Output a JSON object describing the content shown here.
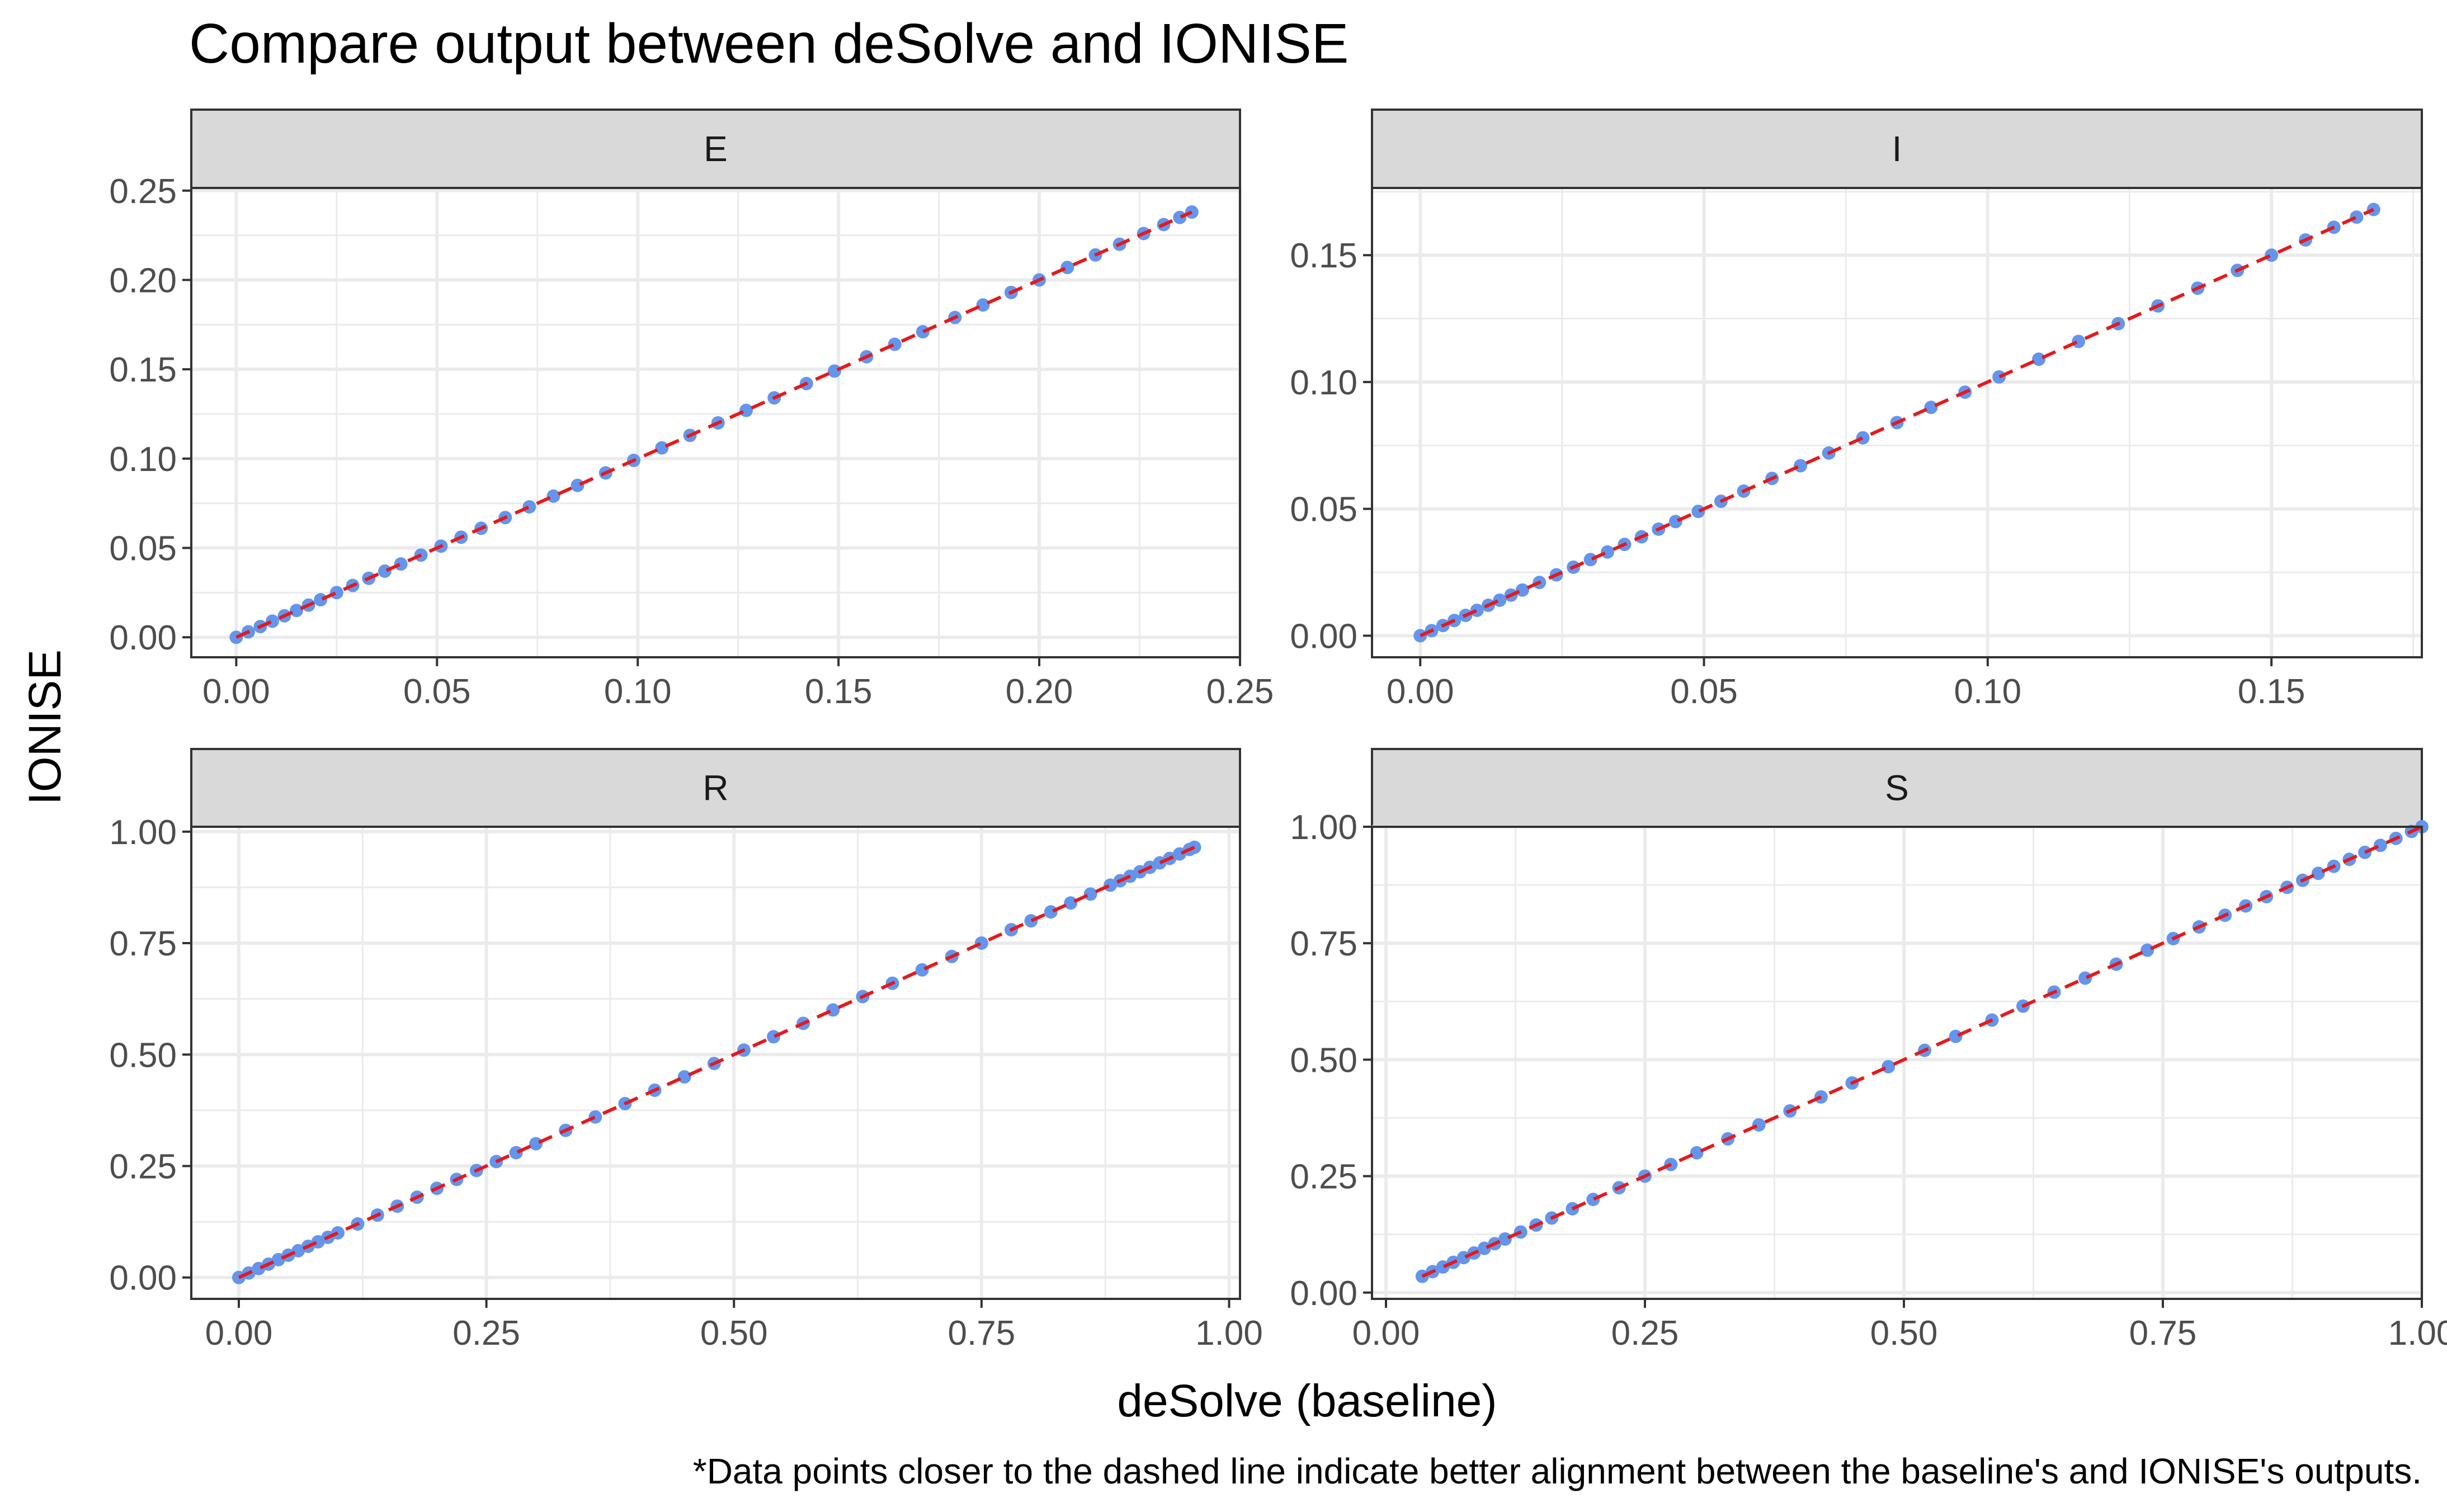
{
  "title": "Compare output between deSolve and IONISE",
  "xlabel": "deSolve (baseline)",
  "ylabel": "IONISE",
  "caption": "*Data points closer to the dashed line indicate better alignment between the baseline's and IONISE's outputs.",
  "colors": {
    "points": "#6495ED",
    "reference_line": "#E41A1C",
    "strip_background": "#D9D9D9",
    "grid": "#EBEBEB",
    "panel_border": "#333333",
    "text": "#000000",
    "tick_text": "#4D4D4D"
  },
  "chart_data": [
    {
      "type": "scatter",
      "panel": "E",
      "xlim": [
        -0.0112,
        0.25
      ],
      "ylim": [
        -0.0112,
        0.2515
      ],
      "xticks": [
        "0.00",
        "0.05",
        "0.10",
        "0.15",
        "0.20",
        "0.25"
      ],
      "yticks": [
        "0.00",
        "0.05",
        "0.10",
        "0.15",
        "0.20",
        "0.25"
      ],
      "x": [
        0,
        0.003,
        0.006,
        0.009,
        0.012,
        0.015,
        0.018,
        0.021,
        0.025,
        0.029,
        0.033,
        0.037,
        0.041,
        0.046,
        0.051,
        0.056,
        0.061,
        0.067,
        0.073,
        0.079,
        0.085,
        0.092,
        0.099,
        0.106,
        0.113,
        0.12,
        0.127,
        0.134,
        0.142,
        0.149,
        0.157,
        0.164,
        0.171,
        0.179,
        0.186,
        0.193,
        0.2,
        0.207,
        0.214,
        0.22,
        0.226,
        0.231,
        0.235,
        0.238
      ],
      "y": [
        0,
        0.003,
        0.006,
        0.009,
        0.012,
        0.015,
        0.018,
        0.021,
        0.025,
        0.029,
        0.033,
        0.037,
        0.041,
        0.046,
        0.051,
        0.056,
        0.061,
        0.067,
        0.073,
        0.079,
        0.085,
        0.092,
        0.099,
        0.106,
        0.113,
        0.12,
        0.127,
        0.134,
        0.142,
        0.149,
        0.157,
        0.164,
        0.171,
        0.179,
        0.186,
        0.193,
        0.2,
        0.207,
        0.214,
        0.22,
        0.226,
        0.231,
        0.235,
        0.238
      ],
      "reference_line": "y = x (dashed)"
    },
    {
      "type": "scatter",
      "panel": "I",
      "xlim": [
        -0.0085,
        0.1765
      ],
      "ylim": [
        -0.0085,
        0.1765
      ],
      "xticks": [
        "0.00",
        "0.05",
        "0.10",
        "0.15"
      ],
      "yticks": [
        "0.00",
        "0.05",
        "0.10",
        "0.15"
      ],
      "x": [
        0,
        0.002,
        0.004,
        0.006,
        0.008,
        0.01,
        0.012,
        0.014,
        0.016,
        0.018,
        0.021,
        0.024,
        0.027,
        0.03,
        0.033,
        0.036,
        0.039,
        0.042,
        0.045,
        0.049,
        0.053,
        0.057,
        0.062,
        0.067,
        0.072,
        0.078,
        0.084,
        0.09,
        0.096,
        0.102,
        0.109,
        0.116,
        0.123,
        0.13,
        0.137,
        0.144,
        0.15,
        0.156,
        0.161,
        0.165,
        0.168
      ],
      "y": [
        0,
        0.002,
        0.004,
        0.006,
        0.008,
        0.01,
        0.012,
        0.014,
        0.016,
        0.018,
        0.021,
        0.024,
        0.027,
        0.03,
        0.033,
        0.036,
        0.039,
        0.042,
        0.045,
        0.049,
        0.053,
        0.057,
        0.062,
        0.067,
        0.072,
        0.078,
        0.084,
        0.09,
        0.096,
        0.102,
        0.109,
        0.116,
        0.123,
        0.13,
        0.137,
        0.144,
        0.15,
        0.156,
        0.161,
        0.165,
        0.168
      ],
      "reference_line": "y = x (dashed)"
    },
    {
      "type": "scatter",
      "panel": "R",
      "xlim": [
        -0.048,
        1.011
      ],
      "ylim": [
        -0.048,
        1.011
      ],
      "xticks": [
        "0.00",
        "0.25",
        "0.50",
        "0.75",
        "1.00"
      ],
      "yticks": [
        "0.00",
        "0.25",
        "0.50",
        "0.75",
        "1.00"
      ],
      "x": [
        0,
        0.01,
        0.02,
        0.03,
        0.04,
        0.05,
        0.06,
        0.07,
        0.08,
        0.09,
        0.1,
        0.12,
        0.14,
        0.16,
        0.18,
        0.2,
        0.22,
        0.24,
        0.26,
        0.28,
        0.3,
        0.33,
        0.36,
        0.39,
        0.42,
        0.45,
        0.48,
        0.51,
        0.54,
        0.57,
        0.6,
        0.63,
        0.66,
        0.69,
        0.72,
        0.75,
        0.78,
        0.8,
        0.82,
        0.84,
        0.86,
        0.88,
        0.89,
        0.9,
        0.91,
        0.92,
        0.93,
        0.94,
        0.95,
        0.96,
        0.965
      ],
      "y": [
        0,
        0.01,
        0.02,
        0.03,
        0.04,
        0.05,
        0.06,
        0.07,
        0.08,
        0.09,
        0.1,
        0.12,
        0.14,
        0.16,
        0.18,
        0.2,
        0.22,
        0.24,
        0.26,
        0.28,
        0.3,
        0.33,
        0.36,
        0.39,
        0.42,
        0.45,
        0.48,
        0.51,
        0.54,
        0.57,
        0.6,
        0.63,
        0.66,
        0.69,
        0.72,
        0.75,
        0.78,
        0.8,
        0.82,
        0.84,
        0.86,
        0.88,
        0.89,
        0.9,
        0.91,
        0.92,
        0.93,
        0.94,
        0.95,
        0.96,
        0.965
      ],
      "reference_line": "y = x (dashed)"
    },
    {
      "type": "scatter",
      "panel": "S",
      "xlim": [
        -0.0135,
        1.0
      ],
      "ylim": [
        -0.0135,
        1.0
      ],
      "xticks": [
        "0.00",
        "0.25",
        "0.50",
        "0.75",
        "1.00"
      ],
      "yticks": [
        "0.00",
        "0.25",
        "0.50",
        "0.75",
        "1.00"
      ],
      "x": [
        0.035,
        0.045,
        0.055,
        0.065,
        0.075,
        0.085,
        0.095,
        0.105,
        0.115,
        0.13,
        0.145,
        0.16,
        0.18,
        0.2,
        0.225,
        0.25,
        0.275,
        0.3,
        0.33,
        0.36,
        0.39,
        0.42,
        0.45,
        0.485,
        0.52,
        0.55,
        0.585,
        0.615,
        0.645,
        0.675,
        0.705,
        0.735,
        0.76,
        0.785,
        0.81,
        0.83,
        0.85,
        0.87,
        0.885,
        0.9,
        0.915,
        0.93,
        0.945,
        0.96,
        0.975,
        0.99,
        1.0
      ],
      "y": [
        0.035,
        0.045,
        0.055,
        0.065,
        0.075,
        0.085,
        0.095,
        0.105,
        0.115,
        0.13,
        0.145,
        0.16,
        0.18,
        0.2,
        0.225,
        0.25,
        0.275,
        0.3,
        0.33,
        0.36,
        0.39,
        0.42,
        0.45,
        0.485,
        0.52,
        0.55,
        0.585,
        0.615,
        0.645,
        0.675,
        0.705,
        0.735,
        0.76,
        0.785,
        0.81,
        0.83,
        0.85,
        0.87,
        0.885,
        0.9,
        0.915,
        0.93,
        0.945,
        0.96,
        0.975,
        0.99,
        1.0
      ],
      "reference_line": "y = x (dashed)"
    }
  ]
}
